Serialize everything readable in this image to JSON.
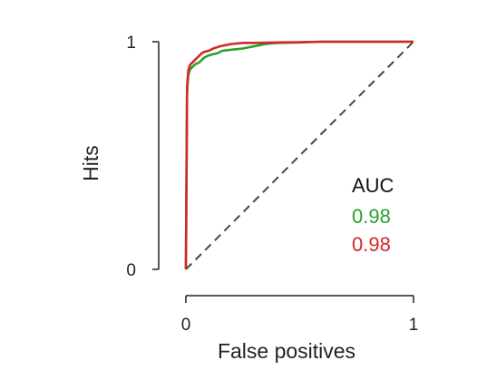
{
  "chart_data": {
    "type": "line",
    "title": "",
    "xlabel": "False positives",
    "ylabel": "Hits",
    "xlim": [
      0,
      1
    ],
    "ylim": [
      0,
      1
    ],
    "x_ticks": [
      "0",
      "1"
    ],
    "y_ticks": [
      "0",
      "1"
    ],
    "grid": false,
    "legend": {
      "title": "AUC",
      "placement": "right",
      "entries": [
        "0.98",
        "0.98"
      ]
    },
    "diagonal": {
      "style": "dashed",
      "color": "#444444",
      "x": [
        0,
        1
      ],
      "y": [
        0,
        1
      ]
    },
    "series": [
      {
        "color": "#2ca02c",
        "auc": "0.98",
        "x": [
          0,
          0.005,
          0.01,
          0.015,
          0.02,
          0.03,
          0.04,
          0.05,
          0.06,
          0.07,
          0.08,
          0.09,
          0.1,
          0.12,
          0.14,
          0.16,
          0.2,
          0.25,
          0.3,
          0.35,
          0.4,
          0.5,
          0.6,
          0.7,
          0.8,
          0.9,
          1.0
        ],
        "y": [
          0,
          0.78,
          0.85,
          0.87,
          0.88,
          0.89,
          0.9,
          0.905,
          0.91,
          0.92,
          0.93,
          0.935,
          0.94,
          0.945,
          0.95,
          0.96,
          0.965,
          0.97,
          0.98,
          0.99,
          0.995,
          0.997,
          1.0,
          1.0,
          1.0,
          1.0,
          1.0
        ]
      },
      {
        "color": "#d62728",
        "auc": "0.98",
        "x": [
          0,
          0.005,
          0.01,
          0.015,
          0.02,
          0.03,
          0.04,
          0.05,
          0.06,
          0.07,
          0.08,
          0.1,
          0.12,
          0.15,
          0.2,
          0.25,
          0.3,
          0.4,
          0.5,
          0.6,
          0.8,
          1.0
        ],
        "y": [
          0,
          0.8,
          0.87,
          0.89,
          0.9,
          0.91,
          0.92,
          0.93,
          0.94,
          0.95,
          0.955,
          0.96,
          0.97,
          0.98,
          0.99,
          0.995,
          0.995,
          0.997,
          0.998,
          1.0,
          1.0,
          1.0
        ]
      }
    ]
  }
}
